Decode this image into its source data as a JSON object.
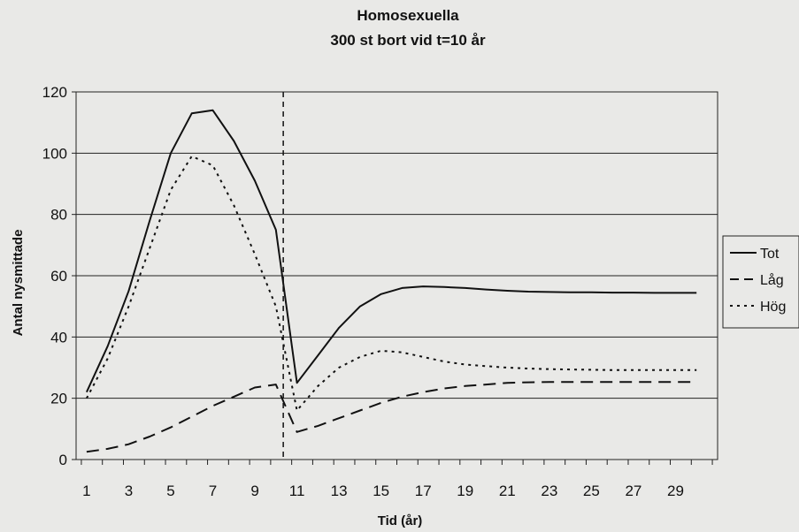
{
  "chart_data": {
    "type": "line",
    "title": "Homosexuella",
    "subtitle": "300 st bort vid t=10 år",
    "xlabel": "Tid (år)",
    "ylabel": "Antal nysmittade",
    "ylim": [
      0,
      120
    ],
    "yticks": [
      0,
      20,
      40,
      60,
      80,
      100,
      120
    ],
    "xtick_labels": [
      "1",
      "3",
      "5",
      "7",
      "9",
      "11",
      "13",
      "15",
      "17",
      "19",
      "21",
      "23",
      "25",
      "27",
      "29"
    ],
    "grid": "horizontal",
    "legend_position": "right",
    "vertical_marker": {
      "after_x": 10,
      "style": "dashed"
    },
    "x": [
      1,
      2,
      3,
      4,
      5,
      6,
      7,
      8,
      9,
      10,
      11,
      12,
      13,
      14,
      15,
      16,
      17,
      18,
      19,
      20,
      21,
      22,
      23,
      24,
      25,
      26,
      27,
      28,
      29,
      30
    ],
    "series": [
      {
        "name": "Tot",
        "style": "solid",
        "values": [
          22,
          37,
          55,
          78,
          100,
          113,
          114,
          104,
          91,
          75,
          25,
          34,
          43,
          50,
          54,
          56,
          56.5,
          56.3,
          56,
          55.5,
          55.1,
          54.8,
          54.7,
          54.6,
          54.6,
          54.5,
          54.5,
          54.4,
          54.4,
          54.4
        ]
      },
      {
        "name": "Låg",
        "style": "dashed",
        "values": [
          2.5,
          3.5,
          5,
          7.5,
          10.5,
          14,
          17.5,
          20.5,
          23.5,
          24.5,
          9,
          11,
          13.5,
          16,
          18.5,
          20.5,
          22,
          23.2,
          24,
          24.5,
          25,
          25.2,
          25.3,
          25.3,
          25.3,
          25.3,
          25.3,
          25.3,
          25.3,
          25.3
        ]
      },
      {
        "name": "Hög",
        "style": "dotted",
        "values": [
          20,
          33,
          50,
          69,
          88,
          99,
          96,
          83,
          67,
          50,
          16,
          24,
          30,
          33.5,
          35.5,
          35,
          33.5,
          32,
          31,
          30.5,
          30,
          29.7,
          29.5,
          29.4,
          29.3,
          29.2,
          29.2,
          29.2,
          29.2,
          29.2
        ]
      }
    ],
    "colors": {
      "line": "#111111",
      "grid": "#222222",
      "background": "#e9e9e7"
    }
  }
}
